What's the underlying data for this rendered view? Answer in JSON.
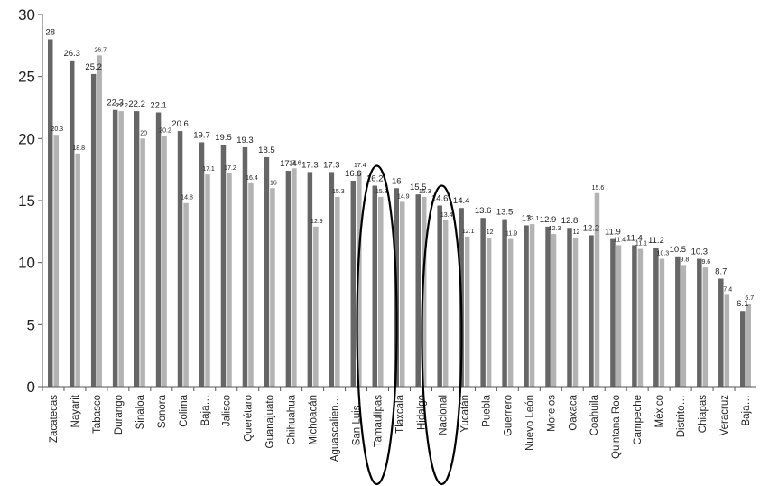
{
  "chart_data": {
    "type": "bar",
    "title": "",
    "xlabel": "",
    "ylabel": "",
    "ylim": [
      0,
      30
    ],
    "yticks": [
      0,
      5,
      10,
      15,
      20,
      25,
      30
    ],
    "grid": false,
    "legend": "none",
    "categories": [
      "Zacatecas",
      "Nayarit",
      "Tabasco",
      "Durango",
      "Sinaloa",
      "Sonora",
      "Colima",
      "Baja…",
      "Jalisco",
      "Querétaro",
      "Guanajuato",
      "Chihuahua",
      "Michoacán",
      "Aguascalien…",
      "San Luis…",
      "Tamaulipas",
      "Tlaxcala",
      "Hidalgo",
      "Nacional",
      "Yucatán",
      "Puebla",
      "Guerrero",
      "Nuevo León",
      "Morelos",
      "Oaxaca",
      "Coahuila",
      "Quintana Roo",
      "Campeche",
      "México",
      "Distrito…",
      "Chiapas",
      "Veracruz",
      "Baja…"
    ],
    "series": [
      {
        "color": "#666666",
        "values": [
          28,
          26.3,
          25.2,
          22.3,
          22.2,
          22.1,
          20.6,
          19.7,
          19.5,
          19.3,
          18.5,
          17.4,
          17.3,
          17.3,
          16.6,
          16.2,
          16,
          15.5,
          14.6,
          14.4,
          13.6,
          13.5,
          13,
          12.9,
          12.8,
          12.2,
          11.9,
          11.4,
          11.2,
          10.5,
          10.3,
          8.7,
          6.1
        ]
      },
      {
        "color": "#b3b3b3",
        "values": [
          20.3,
          18.8,
          26.7,
          22.2,
          20,
          20.2,
          14.8,
          17.1,
          17.2,
          16.4,
          16,
          17.6,
          12.9,
          15.3,
          17.4,
          15.3,
          14.9,
          15.3,
          13.4,
          12.1,
          12,
          11.9,
          13.1,
          12.3,
          12,
          15.6,
          11.4,
          11.1,
          10.3,
          9.8,
          9.6,
          7.4,
          6.7
        ]
      }
    ],
    "highlighted": [
      "Tamaulipas",
      "Nacional"
    ]
  }
}
